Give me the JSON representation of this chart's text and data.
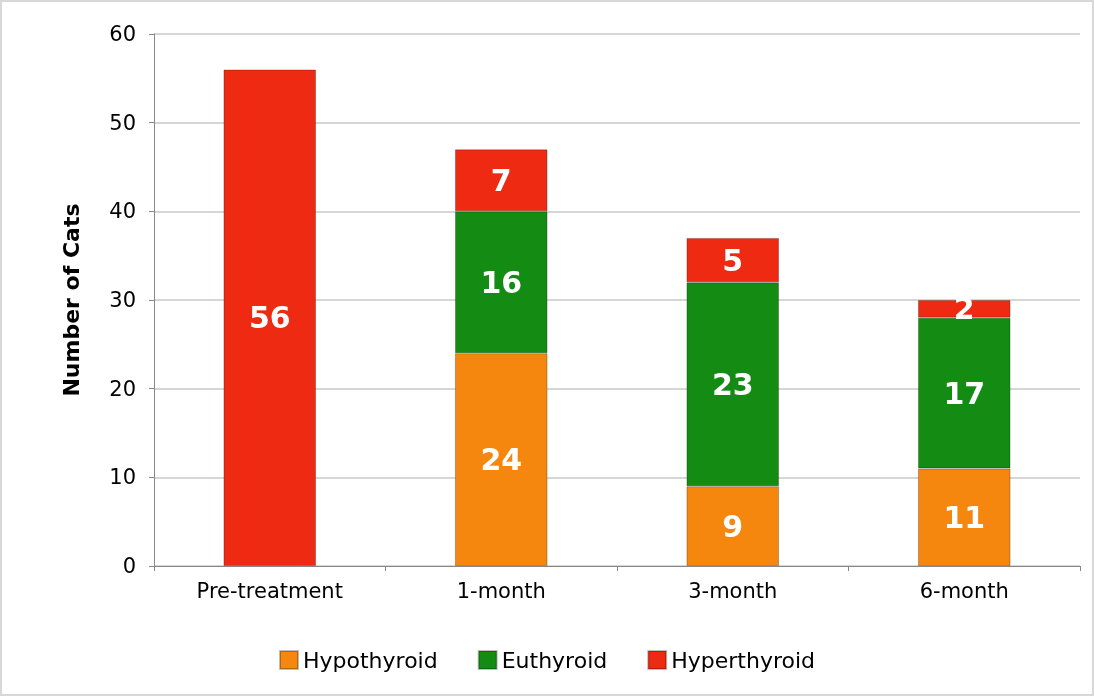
{
  "chart_data": {
    "type": "bar",
    "ylabel": "Number of Cats",
    "categories": [
      "Pre-treatment",
      "1-month",
      "3-month",
      "6-month"
    ],
    "series": [
      {
        "name": "Hypothyroid",
        "color": "#f5870f",
        "values": [
          null,
          24,
          9,
          11
        ]
      },
      {
        "name": "Euthyroid",
        "color": "#148c14",
        "values": [
          null,
          16,
          23,
          17
        ]
      },
      {
        "name": "Hyperthyroid",
        "color": "#ee2a12",
        "values": [
          56,
          7,
          5,
          2
        ]
      }
    ],
    "stacked": true,
    "data_labels": true,
    "ylim": [
      0,
      60
    ],
    "yticks": [
      0,
      10,
      20,
      30,
      40,
      50,
      60
    ],
    "grid": "y",
    "legend": "bottom"
  }
}
